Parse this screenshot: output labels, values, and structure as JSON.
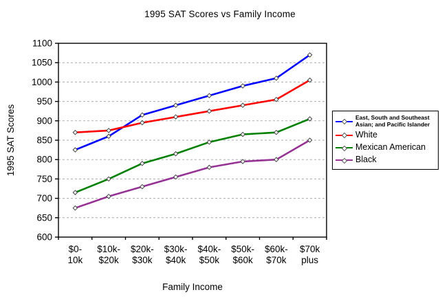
{
  "chart_data": {
    "type": "line",
    "title": "1995 SAT Scores vs Family Income",
    "xlabel": "Family Income",
    "ylabel": "1995 SAT Scores",
    "ylim": [
      600,
      1100
    ],
    "ytick_step": 50,
    "ytick_labels": [
      "600",
      "650",
      "700",
      "750",
      "800",
      "850",
      "900",
      "950",
      "1000",
      "1050",
      "1100"
    ],
    "grid": "horizontal-dashed",
    "legend_position": "right",
    "categories": [
      [
        "$0-",
        "10k"
      ],
      [
        "$10k-",
        "$20k"
      ],
      [
        "$20k-",
        "$30k"
      ],
      [
        "$30k-",
        "$40k"
      ],
      [
        "$40k-",
        "$50k"
      ],
      [
        "$50k-",
        "$60k"
      ],
      [
        "$60k-",
        "$70k"
      ],
      [
        "$70k",
        "plus"
      ]
    ],
    "series": [
      {
        "name": "East, South and Southeast Asian; and Pacific Islander",
        "color": "#0000ff",
        "values": [
          825,
          860,
          915,
          940,
          965,
          990,
          1010,
          1070
        ]
      },
      {
        "name": "White",
        "color": "#ff0000",
        "values": [
          870,
          875,
          895,
          910,
          925,
          940,
          955,
          1005
        ]
      },
      {
        "name": "Mexican American",
        "color": "#008000",
        "values": [
          715,
          750,
          790,
          815,
          845,
          865,
          870,
          905
        ]
      },
      {
        "name": "Black",
        "color": "#963296",
        "values": [
          675,
          705,
          730,
          755,
          780,
          795,
          800,
          850
        ]
      }
    ],
    "colors": {
      "gridline": "#aaaaaa",
      "axis": "#000000",
      "marker_fill": "#ffffff",
      "marker_stroke": "#444444"
    }
  }
}
